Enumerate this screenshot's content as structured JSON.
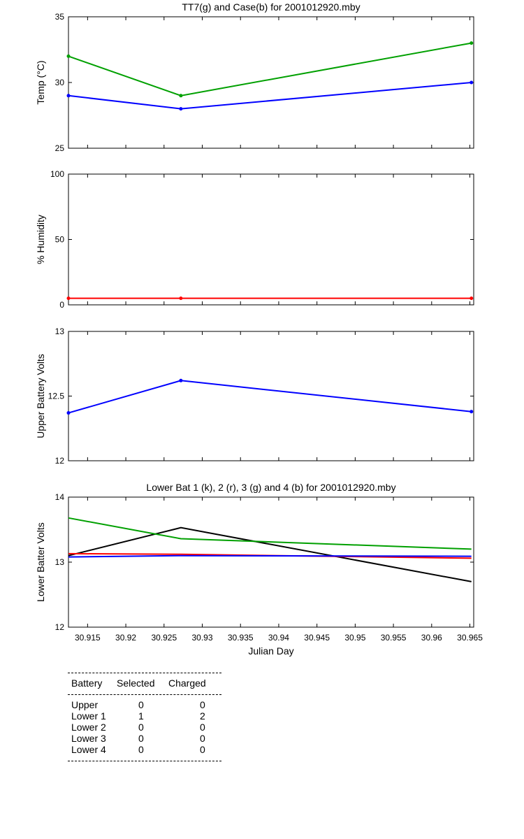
{
  "chart_data": [
    {
      "type": "line",
      "title": "TT7(g) and Case(b) for 2001012920.mby",
      "xlabel": "",
      "ylabel": "Temp  (°C)",
      "xlim": [
        30.9125,
        30.9655
      ],
      "ylim": [
        25,
        35
      ],
      "yticks": [
        "25",
        "30",
        "35"
      ],
      "markers": true,
      "series": [
        {
          "name": "TT7",
          "color": "#00a000",
          "x": [
            30.9125,
            30.9272,
            30.9652
          ],
          "y": [
            32,
            29,
            33
          ]
        },
        {
          "name": "Case",
          "color": "#0000ff",
          "x": [
            30.9125,
            30.9272,
            30.9652
          ],
          "y": [
            29,
            28,
            30
          ]
        }
      ]
    },
    {
      "type": "line",
      "title": "",
      "xlabel": "",
      "ylabel": "% Humidity",
      "xlim": [
        30.9125,
        30.9655
      ],
      "ylim": [
        0,
        100
      ],
      "yticks": [
        "0",
        "50",
        "100"
      ],
      "markers": true,
      "series": [
        {
          "name": "Humidity",
          "color": "#ff0000",
          "x": [
            30.9125,
            30.9272,
            30.9652
          ],
          "y": [
            5,
            5,
            5
          ]
        }
      ]
    },
    {
      "type": "line",
      "title": "",
      "xlabel": "",
      "ylabel": "Upper Battery Volts",
      "xlim": [
        30.9125,
        30.9655
      ],
      "ylim": [
        12,
        13
      ],
      "yticks": [
        "12",
        "12.5",
        "13"
      ],
      "markers": true,
      "series": [
        {
          "name": "Upper Battery",
          "color": "#0000ff",
          "x": [
            30.9125,
            30.9272,
            30.9652
          ],
          "y": [
            12.37,
            12.62,
            12.38
          ]
        }
      ]
    },
    {
      "type": "line",
      "title": "Lower Bat 1 (k), 2 (r), 3 (g) and 4 (b) for 2001012920.mby",
      "xlabel": "Julian Day",
      "ylabel": "Lower Batter Volts",
      "xlim": [
        30.9125,
        30.9655
      ],
      "ylim": [
        12,
        14
      ],
      "yticks": [
        "12",
        "13",
        "14"
      ],
      "xticks": [
        "30.915",
        "30.92",
        "30.925",
        "30.93",
        "30.935",
        "30.94",
        "30.945",
        "30.95",
        "30.955",
        "30.96",
        "30.965"
      ],
      "markers": false,
      "series": [
        {
          "name": "Lower Bat 1",
          "color": "#000000",
          "x": [
            30.9125,
            30.9272,
            30.9652
          ],
          "y": [
            13.1,
            13.53,
            12.7
          ]
        },
        {
          "name": "Lower Bat 2",
          "color": "#ff0000",
          "x": [
            30.9125,
            30.9272,
            30.9652
          ],
          "y": [
            13.13,
            13.12,
            13.06
          ]
        },
        {
          "name": "Lower Bat 3",
          "color": "#00a000",
          "x": [
            30.9125,
            30.9272,
            30.9652
          ],
          "y": [
            13.68,
            13.36,
            13.2
          ]
        },
        {
          "name": "Lower Bat 4",
          "color": "#0000ff",
          "x": [
            30.9125,
            30.9272,
            30.9652
          ],
          "y": [
            13.08,
            13.1,
            13.09
          ]
        }
      ]
    }
  ],
  "table": {
    "headers": [
      "Battery",
      "Selected",
      "Charged"
    ],
    "rows": [
      [
        "Upper",
        "0",
        "0"
      ],
      [
        "Lower 1",
        "1",
        "2"
      ],
      [
        "Lower 2",
        "0",
        "0"
      ],
      [
        "Lower 3",
        "0",
        "0"
      ],
      [
        "Lower 4",
        "0",
        "0"
      ]
    ]
  }
}
